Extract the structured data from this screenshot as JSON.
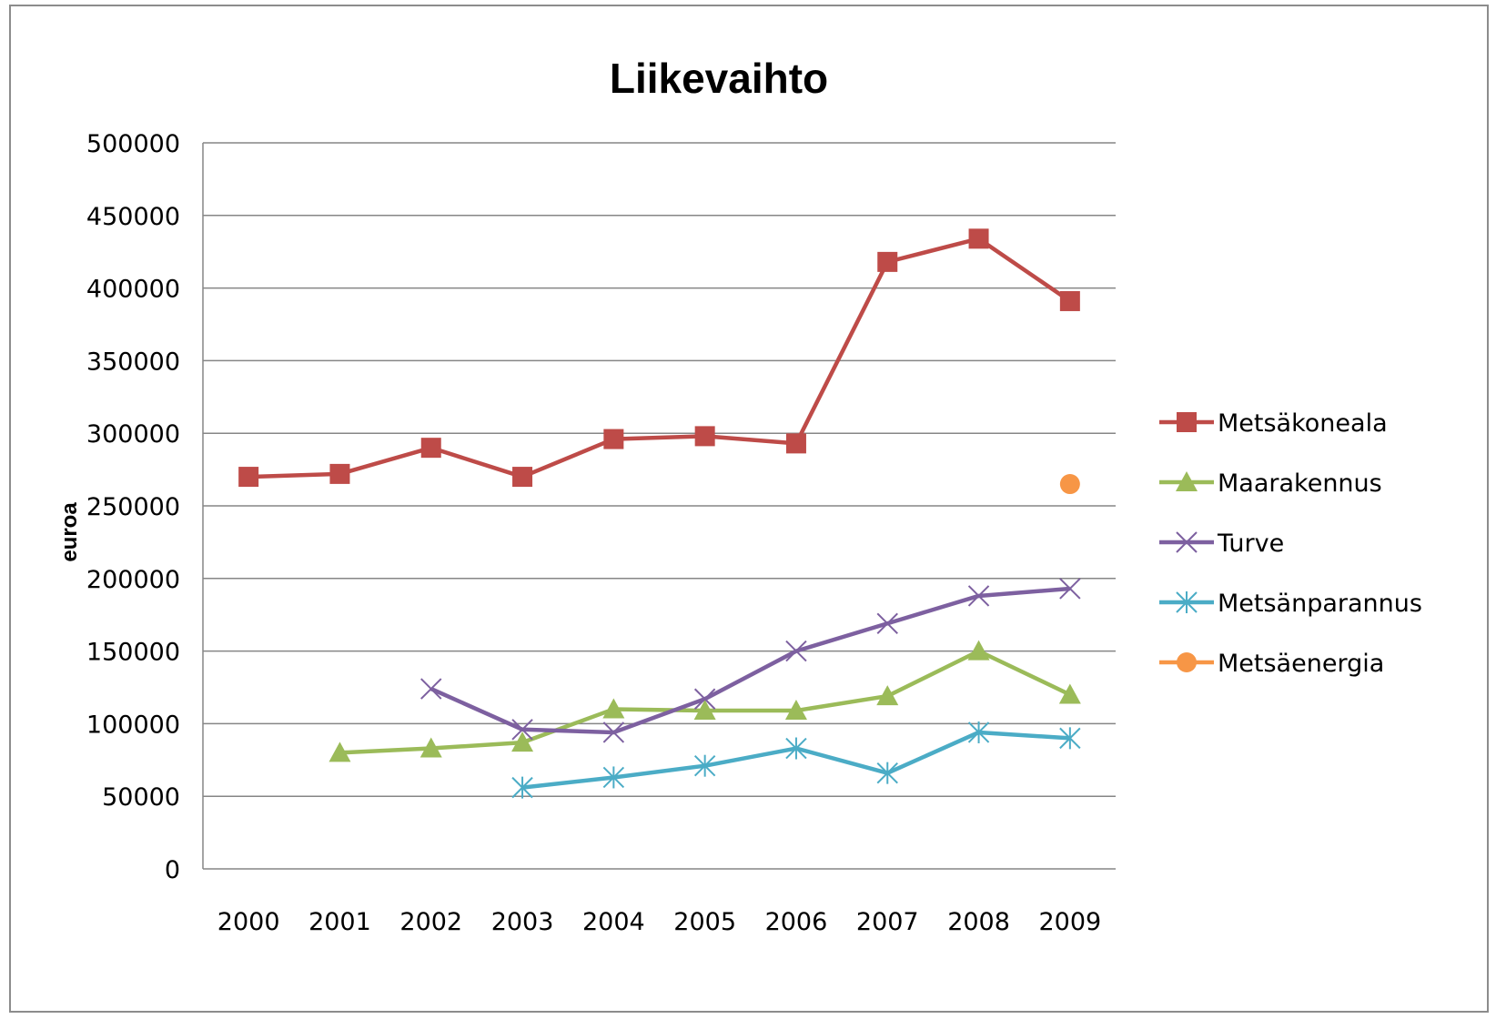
{
  "chart_data": {
    "type": "line",
    "title": "Liikevaihto",
    "ylabel": "euroa",
    "xlabel": "",
    "categories": [
      "2000",
      "2001",
      "2002",
      "2003",
      "2004",
      "2005",
      "2006",
      "2007",
      "2008",
      "2009"
    ],
    "ylim": [
      0,
      500000
    ],
    "yticks": [
      "0",
      "50000",
      "100000",
      "150000",
      "200000",
      "250000",
      "300000",
      "350000",
      "400000",
      "450000",
      "500000"
    ],
    "grid": "horizontal",
    "legend_position": "right",
    "series": [
      {
        "name": "Metsäkoneala",
        "color": "#be4b48",
        "marker": "square",
        "values": [
          270000,
          272000,
          290000,
          270000,
          296000,
          298000,
          293000,
          418000,
          434000,
          391000
        ]
      },
      {
        "name": "Maarakennus",
        "color": "#9bbb59",
        "marker": "triangle",
        "values": [
          null,
          80000,
          83000,
          87000,
          110000,
          109000,
          109000,
          119000,
          150000,
          120000
        ]
      },
      {
        "name": "Turve",
        "color": "#7d60a0",
        "marker": "x",
        "values": [
          null,
          null,
          124000,
          96000,
          94000,
          117000,
          150000,
          169000,
          188000,
          193000
        ]
      },
      {
        "name": "Metsänparannus",
        "color": "#4bacc6",
        "marker": "asterisk",
        "values": [
          null,
          null,
          null,
          56000,
          63000,
          71000,
          83000,
          66000,
          94000,
          90000
        ]
      },
      {
        "name": "Metsäenergia",
        "color": "#f79646",
        "marker": "circle",
        "values": [
          null,
          null,
          null,
          null,
          null,
          null,
          null,
          null,
          null,
          265000
        ]
      }
    ]
  }
}
